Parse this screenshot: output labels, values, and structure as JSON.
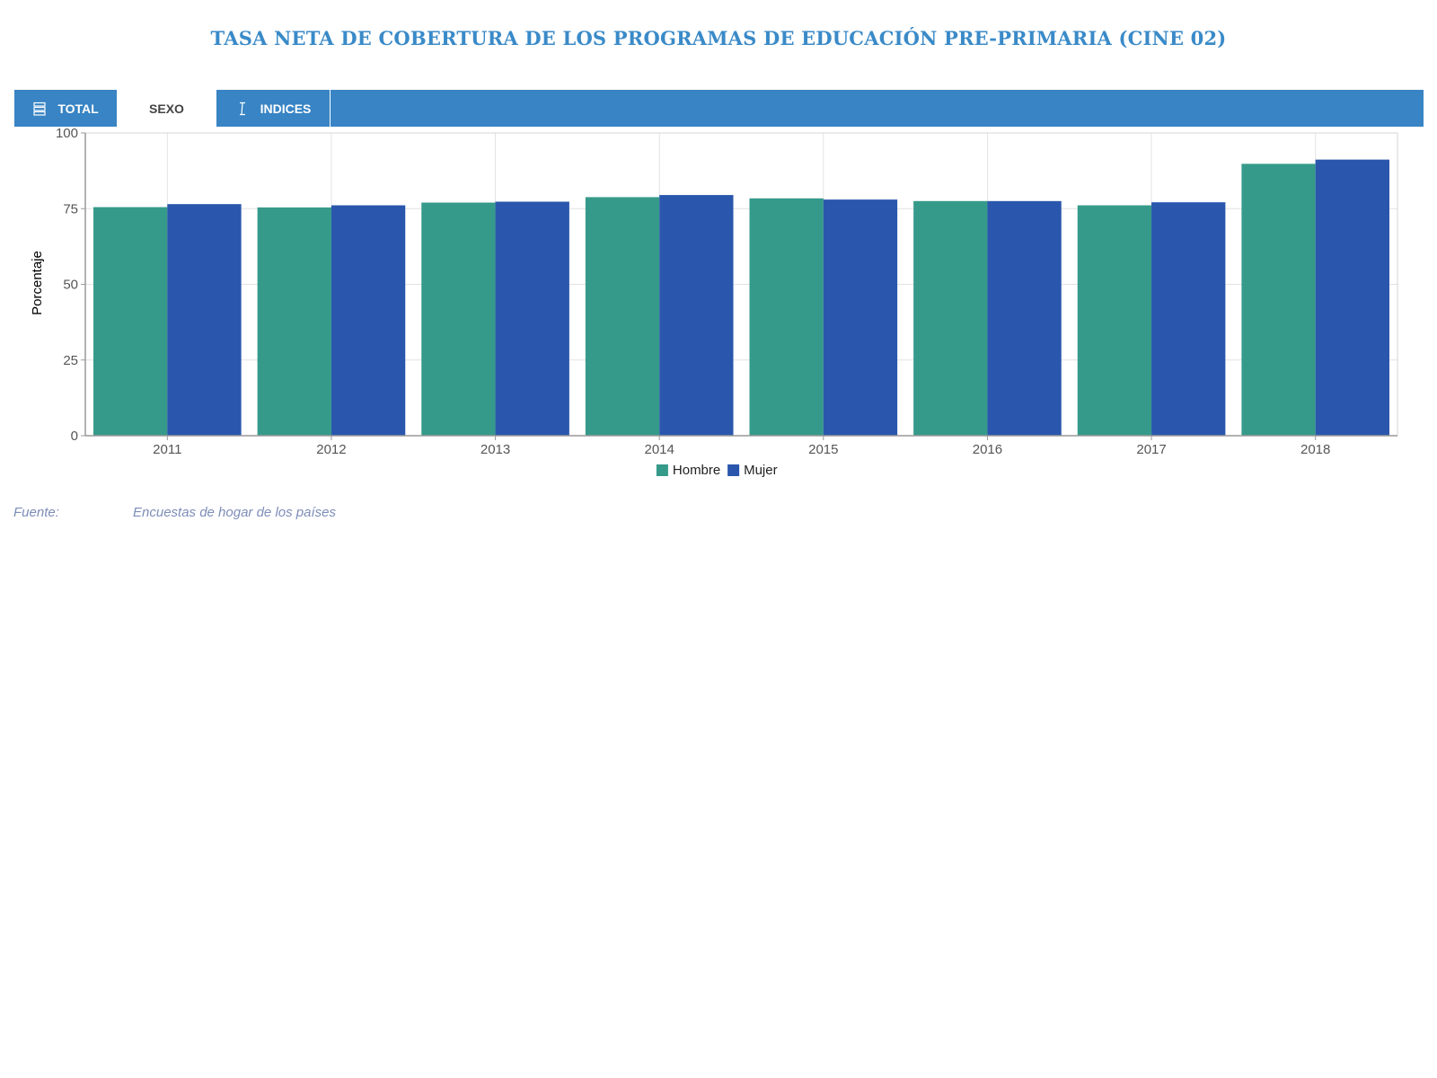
{
  "title": "TASA NETA DE COBERTURA DE LOS PROGRAMAS DE EDUCACIÓN PRE-PRIMARIA (CINE 02)",
  "tabs": [
    {
      "label": "TOTAL",
      "icon": "list-icon",
      "active": false
    },
    {
      "label": "SEXO",
      "icon": "",
      "active": true
    },
    {
      "label": "INDICES",
      "icon": "text-cursor-icon",
      "active": false
    }
  ],
  "colors": {
    "accent": "#3884c4",
    "title": "#3a8ac8",
    "hombre": "#369a8a",
    "mujer": "#2a57ad"
  },
  "chart_data": {
    "type": "bar",
    "categories": [
      "2011",
      "2012",
      "2013",
      "2014",
      "2015",
      "2016",
      "2017",
      "2018"
    ],
    "series": [
      {
        "name": "Hombre",
        "values": [
          75.5,
          75.4,
          77.0,
          78.8,
          78.4,
          77.5,
          76.1,
          89.8
        ]
      },
      {
        "name": "Mujer",
        "values": [
          76.5,
          76.1,
          77.3,
          79.5,
          78.0,
          77.5,
          77.1,
          91.2
        ]
      }
    ],
    "title": "",
    "xlabel": "",
    "ylabel": "Porcentaje",
    "ylim": [
      0,
      100
    ],
    "yticks": [
      0,
      25,
      50,
      75,
      100
    ],
    "grid": true,
    "legend": "bottom-center"
  },
  "source": {
    "label": "Fuente:",
    "text": "Encuestas de hogar de los países"
  }
}
